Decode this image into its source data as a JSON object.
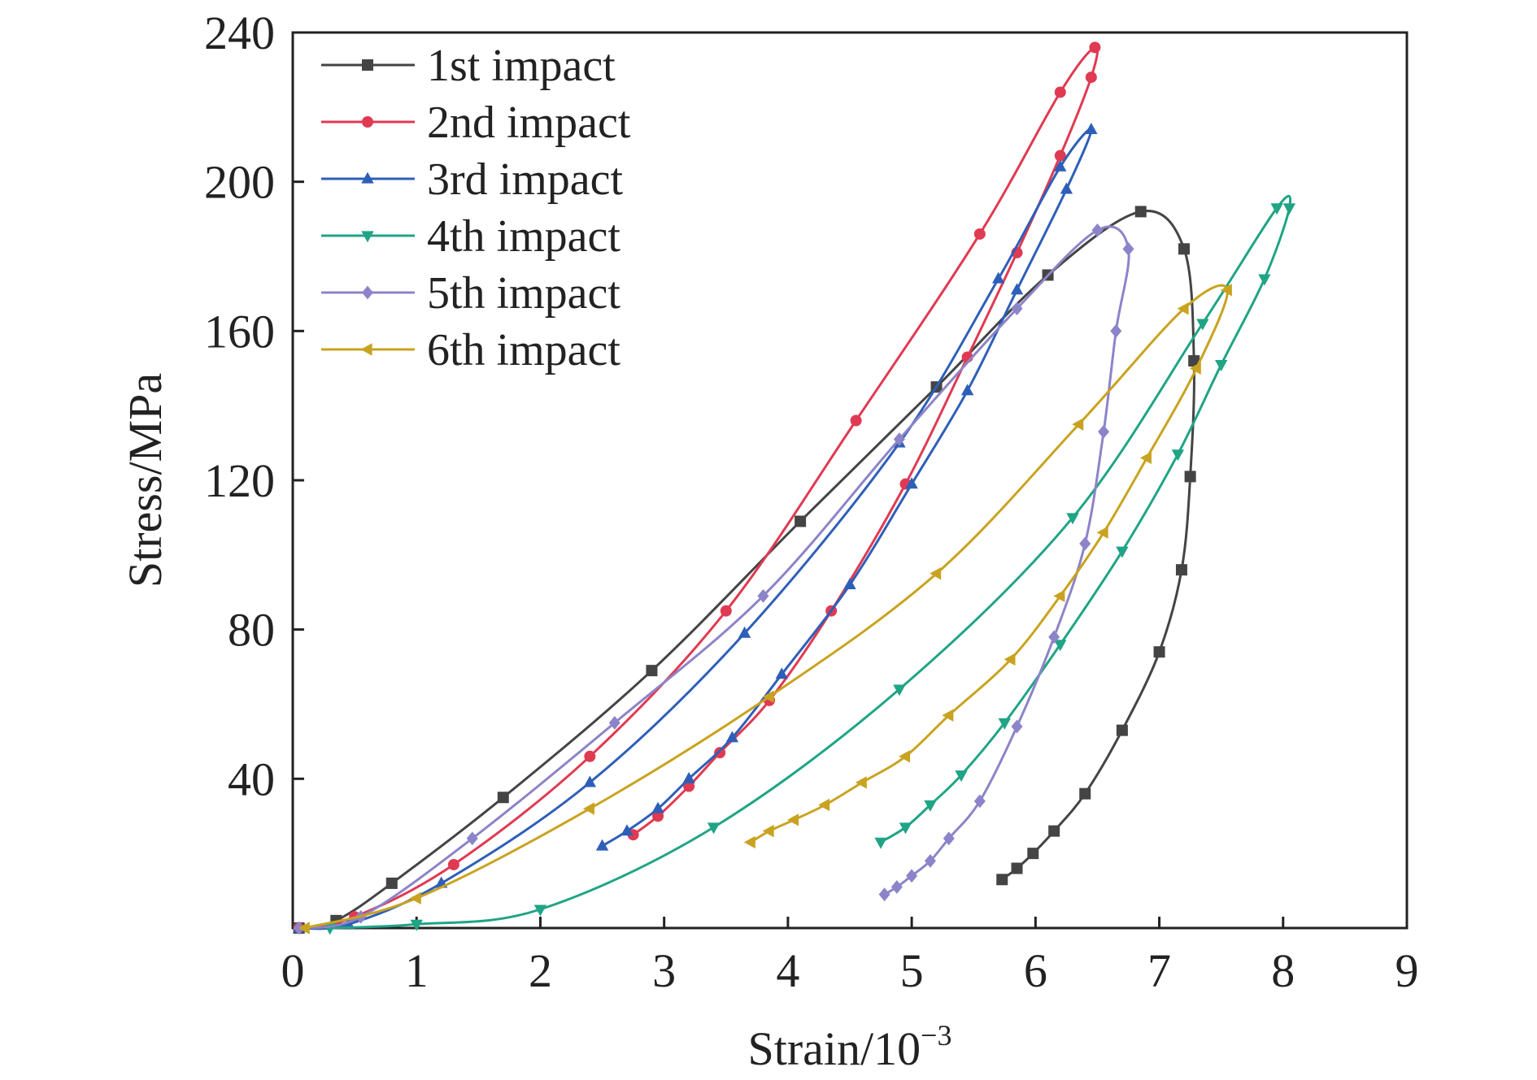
{
  "chart_data": {
    "type": "line",
    "xlabel": "Strain/10",
    "xlabel_superscript": "−3",
    "ylabel": "Stress/MPa",
    "xlim": [
      0,
      9
    ],
    "ylim": [
      0,
      240
    ],
    "x_ticks": [
      0,
      1,
      2,
      3,
      4,
      5,
      6,
      7,
      8,
      9
    ],
    "y_ticks": [
      40,
      80,
      120,
      160,
      200,
      240
    ],
    "x_tick_labels": [
      "0",
      "1",
      "2",
      "3",
      "4",
      "5",
      "6",
      "7",
      "8",
      "9"
    ],
    "y_tick_labels": [
      "40",
      "80",
      "120",
      "160",
      "200",
      "240"
    ],
    "grid": false,
    "legend_position": "top-left",
    "series": [
      {
        "name": "1st impact",
        "color": "#444444",
        "marker": "square",
        "points": [
          [
            0.05,
            0
          ],
          [
            0.35,
            2
          ],
          [
            0.8,
            12
          ],
          [
            1.7,
            35
          ],
          [
            2.9,
            69
          ],
          [
            4.1,
            109
          ],
          [
            5.2,
            145
          ],
          [
            6.1,
            175
          ],
          [
            6.85,
            192
          ],
          [
            7.2,
            182
          ],
          [
            7.28,
            152
          ],
          [
            7.25,
            121
          ],
          [
            7.18,
            96
          ],
          [
            7.0,
            74
          ],
          [
            6.7,
            53
          ],
          [
            6.4,
            36
          ],
          [
            6.15,
            26
          ],
          [
            5.98,
            20
          ],
          [
            5.85,
            16
          ],
          [
            5.73,
            13
          ]
        ]
      },
      {
        "name": "2nd impact",
        "color": "#e03a52",
        "marker": "circle",
        "points": [
          [
            0.05,
            0
          ],
          [
            0.5,
            3
          ],
          [
            1.3,
            17
          ],
          [
            2.4,
            46
          ],
          [
            3.5,
            85
          ],
          [
            4.55,
            136
          ],
          [
            5.55,
            186
          ],
          [
            6.2,
            224
          ],
          [
            6.48,
            236
          ],
          [
            6.45,
            228
          ],
          [
            6.2,
            207
          ],
          [
            5.85,
            181
          ],
          [
            5.45,
            153
          ],
          [
            4.95,
            119
          ],
          [
            4.35,
            85
          ],
          [
            3.85,
            61
          ],
          [
            3.45,
            47
          ],
          [
            3.2,
            38
          ],
          [
            2.95,
            30
          ],
          [
            2.75,
            25
          ]
        ]
      },
      {
        "name": "3rd impact",
        "color": "#2e5fb8",
        "marker": "triangle-up",
        "points": [
          [
            0.05,
            0
          ],
          [
            0.45,
            1
          ],
          [
            1.2,
            12
          ],
          [
            2.4,
            39
          ],
          [
            3.65,
            79
          ],
          [
            4.9,
            130
          ],
          [
            5.7,
            174
          ],
          [
            6.2,
            204
          ],
          [
            6.45,
            214
          ],
          [
            6.25,
            198
          ],
          [
            5.85,
            171
          ],
          [
            5.45,
            144
          ],
          [
            5.0,
            119
          ],
          [
            4.5,
            92
          ],
          [
            3.95,
            68
          ],
          [
            3.55,
            51
          ],
          [
            3.2,
            40
          ],
          [
            2.95,
            32
          ],
          [
            2.7,
            26
          ],
          [
            2.5,
            22
          ]
        ]
      },
      {
        "name": "4th impact",
        "color": "#20a486",
        "marker": "triangle-down",
        "points": [
          [
            0.3,
            0
          ],
          [
            1.0,
            1
          ],
          [
            2.0,
            5
          ],
          [
            3.4,
            27
          ],
          [
            4.9,
            64
          ],
          [
            6.3,
            110
          ],
          [
            7.35,
            162
          ],
          [
            7.95,
            193
          ],
          [
            8.05,
            193
          ],
          [
            7.85,
            174
          ],
          [
            7.5,
            151
          ],
          [
            7.15,
            127
          ],
          [
            6.7,
            101
          ],
          [
            6.2,
            76
          ],
          [
            5.75,
            55
          ],
          [
            5.4,
            41
          ],
          [
            5.15,
            33
          ],
          [
            4.95,
            27
          ],
          [
            4.75,
            23
          ]
        ]
      },
      {
        "name": "5th impact",
        "color": "#8c84c8",
        "marker": "diamond",
        "points": [
          [
            0.05,
            0
          ],
          [
            0.55,
            3
          ],
          [
            1.45,
            24
          ],
          [
            2.6,
            55
          ],
          [
            3.8,
            89
          ],
          [
            4.9,
            131
          ],
          [
            5.85,
            166
          ],
          [
            6.5,
            187
          ],
          [
            6.75,
            182
          ],
          [
            6.65,
            160
          ],
          [
            6.55,
            133
          ],
          [
            6.4,
            103
          ],
          [
            6.15,
            78
          ],
          [
            5.85,
            54
          ],
          [
            5.55,
            34
          ],
          [
            5.3,
            24
          ],
          [
            5.15,
            18
          ],
          [
            5.0,
            14
          ],
          [
            4.88,
            11
          ],
          [
            4.78,
            9
          ]
        ]
      },
      {
        "name": "6th impact",
        "color": "#c9a320",
        "marker": "triangle-left",
        "points": [
          [
            0.1,
            0
          ],
          [
            1.0,
            8
          ],
          [
            2.4,
            32
          ],
          [
            3.85,
            62
          ],
          [
            5.2,
            95
          ],
          [
            6.35,
            135
          ],
          [
            7.2,
            166
          ],
          [
            7.55,
            171
          ],
          [
            7.3,
            150
          ],
          [
            6.9,
            126
          ],
          [
            6.55,
            106
          ],
          [
            6.2,
            89
          ],
          [
            5.8,
            72
          ],
          [
            5.3,
            57
          ],
          [
            4.95,
            46
          ],
          [
            4.6,
            39
          ],
          [
            4.3,
            33
          ],
          [
            4.05,
            29
          ],
          [
            3.85,
            26
          ],
          [
            3.7,
            23
          ]
        ]
      }
    ]
  }
}
